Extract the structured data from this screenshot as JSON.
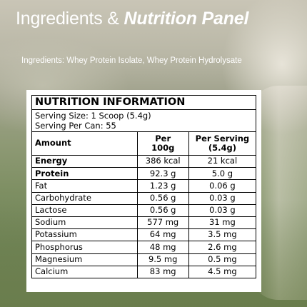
{
  "heading": {
    "part1": "Ingredients & ",
    "part2": "Nutrition Panel"
  },
  "ingredients": "Ingredients: Whey Protein Isolate, Whey Protein Hydrolysate",
  "panel": {
    "title": "NUTRITION INFORMATION",
    "serving_size": "Serving Size: 1 Scoop (5.4g)",
    "serving_per_can": "Serving Per Can: 55",
    "columns": {
      "amount": "Amount",
      "per100_line1": "Per",
      "per100_line2": "100g",
      "perserving_line1": "Per Serving",
      "perserving_line2": "(5.4g)"
    },
    "rows": [
      {
        "name": "Energy",
        "per100": "386 kcal",
        "serving": "21 kcal"
      },
      {
        "name": "Protein",
        "per100": "92.3 g",
        "serving": "5.0 g"
      },
      {
        "name": "Fat",
        "per100": "1.23 g",
        "serving": "0.06 g"
      },
      {
        "name": "Carbohydrate",
        "per100": "0.56 g",
        "serving": "0.03 g"
      },
      {
        "name": "Lactose",
        "per100": "0.56 g",
        "serving": "0.03 g"
      },
      {
        "name": "Sodium",
        "per100": "577 mg",
        "serving": "31 mg"
      },
      {
        "name": "Potassium",
        "per100": "64 mg",
        "serving": "3.5 mg"
      },
      {
        "name": "Phosphorus",
        "per100": "48 mg",
        "serving": "2.6 mg"
      },
      {
        "name": "Magnesium",
        "per100": "9.5 mg",
        "serving": "0.5 mg"
      },
      {
        "name": "Calcium",
        "per100": "83 mg",
        "serving": "4.5 mg"
      }
    ]
  }
}
